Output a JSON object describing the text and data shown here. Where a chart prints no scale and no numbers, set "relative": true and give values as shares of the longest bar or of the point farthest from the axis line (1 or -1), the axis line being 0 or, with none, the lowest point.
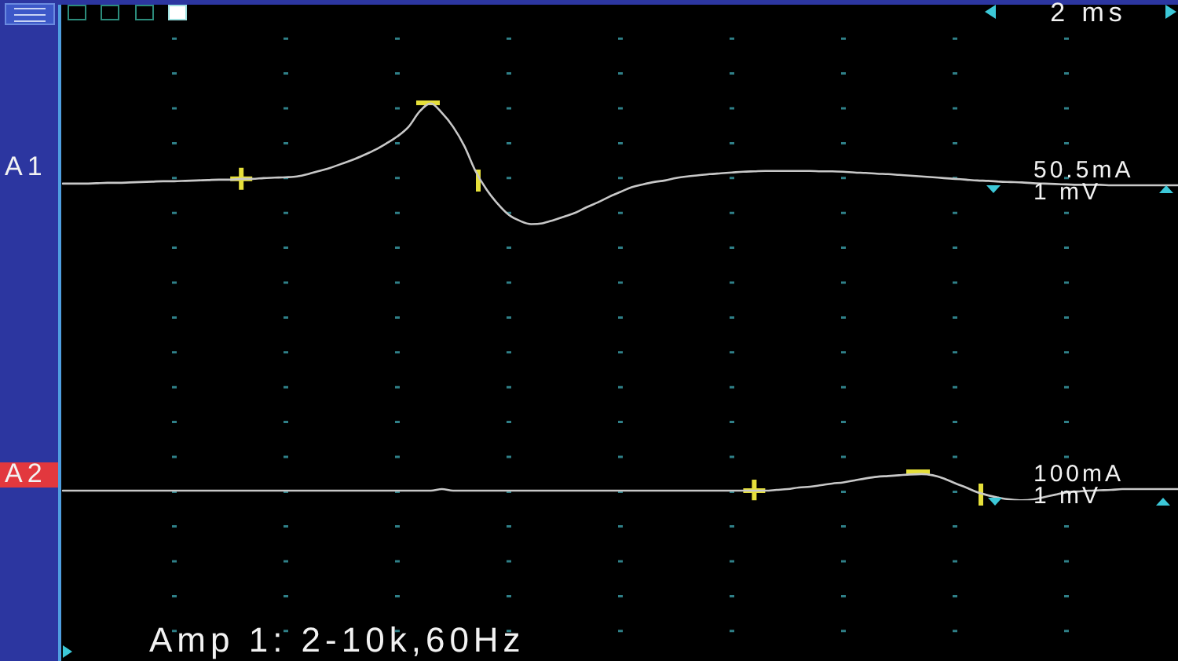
{
  "chart_data": {
    "type": "line",
    "relative": true,
    "grid": "x",
    "xlabel": "2 ms",
    "annotations": [
      "Amp 1: 2-10k,60Hz",
      "50.5mA",
      "1 mV",
      "100mA",
      "1 mV"
    ],
    "categories": [
      null,
      null,
      null,
      null,
      null,
      null,
      null,
      null,
      null,
      null,
      null,
      null,
      null,
      null,
      null,
      null,
      null,
      null,
      null,
      null,
      null,
      null,
      null,
      null,
      null,
      null,
      null,
      null,
      null,
      null,
      null,
      null,
      null,
      null,
      null,
      null,
      null,
      null,
      null,
      null,
      null,
      null,
      null,
      null,
      null,
      null,
      null,
      null,
      null,
      null,
      null,
      null,
      null,
      null,
      null,
      null,
      null,
      null,
      null,
      null,
      null,
      null,
      null,
      null,
      null,
      null,
      null,
      null,
      null,
      null,
      null,
      null,
      null,
      null,
      null,
      null,
      null,
      null,
      null,
      null,
      null,
      null,
      null,
      null,
      null,
      null,
      null,
      null,
      null,
      null,
      null,
      null,
      null,
      null,
      null,
      null,
      null,
      null,
      null,
      null,
      null
    ],
    "series": [
      {
        "name": "A1",
        "color": "#c8c8c8",
        "values": [
          0.798,
          0.798,
          0.798,
          0.799,
          0.8,
          0.8,
          0.801,
          0.802,
          0.803,
          0.804,
          0.804,
          0.805,
          0.806,
          0.807,
          0.808,
          0.808,
          0.81,
          0.81,
          0.812,
          0.813,
          0.814,
          0.816,
          0.822,
          0.83,
          0.838,
          0.848,
          0.858,
          0.87,
          0.883,
          0.899,
          0.917,
          0.941,
          0.98,
          1,
          0.976,
          0.941,
          0.893,
          0.83,
          0.783,
          0.747,
          0.719,
          0.704,
          0.696,
          0.698,
          0.706,
          0.715,
          0.725,
          0.739,
          0.751,
          0.765,
          0.777,
          0.789,
          0.796,
          0.802,
          0.806,
          0.812,
          0.816,
          0.819,
          0.822,
          0.824,
          0.826,
          0.828,
          0.829,
          0.83,
          0.83,
          0.83,
          0.83,
          0.83,
          0.829,
          0.829,
          0.828,
          0.826,
          0.825,
          0.823,
          0.822,
          0.82,
          0.818,
          0.816,
          0.814,
          0.812,
          0.81,
          0.808,
          0.806,
          0.805,
          0.803,
          0.802,
          0.801,
          0.799,
          0.798,
          0.797,
          0.796,
          0.795,
          0.795,
          0.795,
          0.794,
          0.794,
          0.794,
          0.794,
          0.794,
          0.794,
          0.794
        ]
      },
      {
        "name": "A2",
        "color": "#c8c8c8",
        "values": [
          0.024,
          0.024,
          0.024,
          0.024,
          0.024,
          0.024,
          0.024,
          0.024,
          0.024,
          0.024,
          0.024,
          0.024,
          0.024,
          0.024,
          0.024,
          0.024,
          0.024,
          0.024,
          0.024,
          0.024,
          0.024,
          0.024,
          0.024,
          0.024,
          0.024,
          0.024,
          0.024,
          0.024,
          0.024,
          0.024,
          0.024,
          0.024,
          0.024,
          0.024,
          0.028,
          0.024,
          0.024,
          0.024,
          0.024,
          0.024,
          0.024,
          0.024,
          0.024,
          0.024,
          0.024,
          0.024,
          0.024,
          0.024,
          0.024,
          0.024,
          0.024,
          0.024,
          0.024,
          0.024,
          0.024,
          0.024,
          0.024,
          0.024,
          0.024,
          0.024,
          0.024,
          0.024,
          0.024,
          0.024,
          0.026,
          0.028,
          0.032,
          0.034,
          0.038,
          0.042,
          0.045,
          0.05,
          0.055,
          0.059,
          0.061,
          0.063,
          0.065,
          0.066,
          0.063,
          0.055,
          0.043,
          0.032,
          0.02,
          0.012,
          0.006,
          0.002,
          0,
          0.002,
          0.008,
          0.014,
          0.02,
          0.022,
          0.024,
          0.025,
          0.026,
          0.028,
          0.028,
          0.028,
          0.028,
          0.028,
          0.028
        ]
      },
      {
        "marker": "cross",
        "color": "#e6e03a",
        "values": [
          null,
          null,
          null,
          null,
          null,
          null,
          null,
          null,
          null,
          null,
          null,
          null,
          null,
          null,
          null,
          null,
          0.81,
          null,
          null,
          null,
          null,
          null,
          null,
          null,
          null,
          null,
          null,
          null,
          null,
          null,
          null,
          null,
          null,
          null,
          null,
          null,
          null,
          null,
          null,
          null,
          null,
          null,
          null,
          null,
          null,
          null,
          null,
          null,
          null,
          null,
          null,
          null,
          null,
          null,
          null,
          null,
          null,
          null,
          null,
          null,
          null,
          null,
          0.024,
          null,
          null,
          null,
          null,
          null,
          null,
          null,
          null,
          null,
          null,
          null,
          null,
          null,
          null,
          null,
          null,
          null,
          null,
          null,
          null,
          null,
          null,
          null,
          null,
          null,
          null,
          null,
          null,
          null,
          null,
          null,
          null,
          null,
          null,
          null,
          null,
          null,
          null
        ]
      }
    ]
  }
}
